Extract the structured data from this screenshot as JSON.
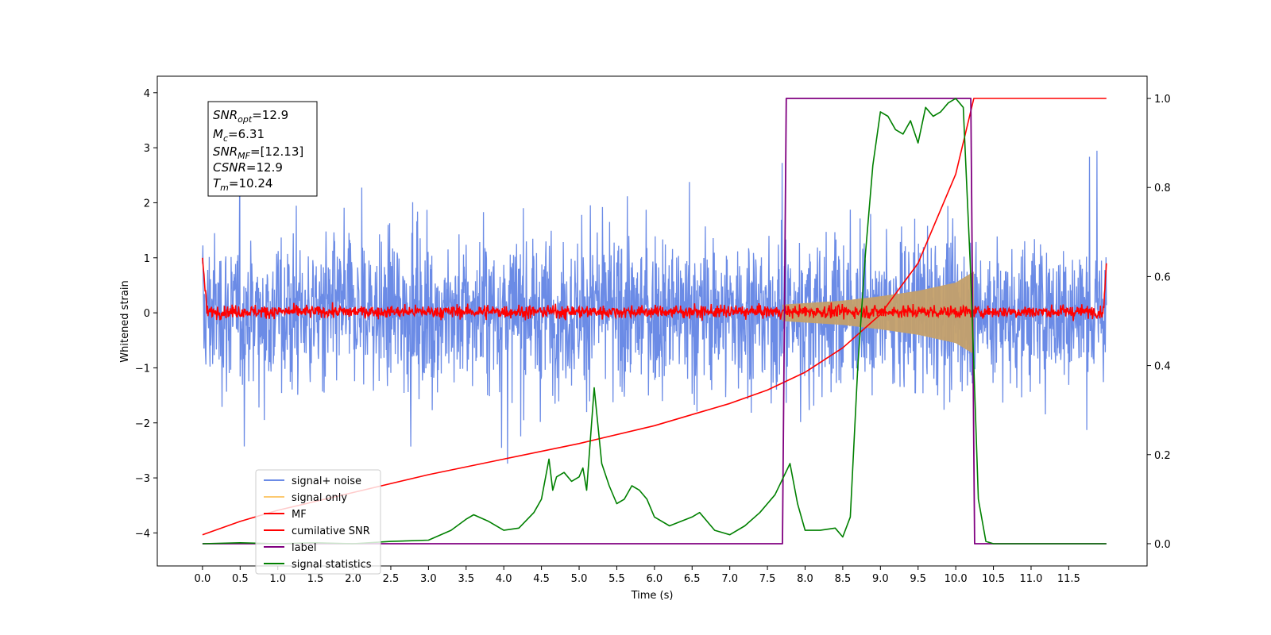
{
  "chart_data": {
    "type": "line",
    "title": "",
    "xlabel": "Time (s)",
    "ylabel": "Whitened strain",
    "xlim": [
      -0.6,
      12.54
    ],
    "ylim_left": [
      -4.6,
      4.3
    ],
    "ylim_right": [
      -0.05,
      1.05
    ],
    "xticks": [
      "0.0",
      "0.5",
      "1.0",
      "1.5",
      "2.0",
      "2.5",
      "3.0",
      "3.5",
      "4.0",
      "4.5",
      "5.0",
      "5.5",
      "6.0",
      "6.5",
      "7.0",
      "7.5",
      "8.0",
      "8.5",
      "9.0",
      "9.5",
      "10.0",
      "10.5",
      "11.0",
      "11.5"
    ],
    "yticks_left": [
      "4",
      "3",
      "2",
      "1",
      "0",
      "−1",
      "−2",
      "−3",
      "−4"
    ],
    "yticks_right": [
      "1.0",
      "0.8",
      "0.6",
      "0.4",
      "0.2",
      "0.0"
    ],
    "grid": false,
    "legend_position": "lower-left",
    "info_box": {
      "line1": "=12.9",
      "line1_sym": "SNR",
      "line1_sub": "opt",
      "line2": "=6.31",
      "line2_sym": "M",
      "line2_sub": "c",
      "line3": "=[12.13]",
      "line3_sym": "SNR",
      "line3_sub": "MF",
      "line4": "=12.9",
      "line4_sym": "CSNR",
      "line5": "=10.24",
      "line5_sym": "T",
      "line5_sub": "m"
    },
    "series": [
      {
        "name": "signal+ noise",
        "color": "#6b8be6",
        "axis": "left",
        "noise_envelope": 2.6,
        "t_range": [
          0,
          12.0
        ]
      },
      {
        "name": "signal only",
        "color": "#fcc970",
        "axis": "left",
        "envelope": [
          [
            7.7,
            0.15
          ],
          [
            8.5,
            0.22
          ],
          [
            9.0,
            0.3
          ],
          [
            9.5,
            0.4
          ],
          [
            10.0,
            0.55
          ],
          [
            10.24,
            0.75
          ]
        ]
      },
      {
        "name": "MF",
        "color": "#ff0000",
        "axis": "left",
        "baseline": 0.02,
        "noise": 0.09,
        "edges": [
          [
            0.0,
            1.0
          ],
          [
            12.0,
            0.9
          ]
        ]
      },
      {
        "name": "cumilative SNR",
        "color": "#ff0000",
        "axis": "right",
        "x": [
          0.0,
          0.5,
          1.0,
          2.0,
          3.0,
          4.0,
          5.0,
          6.0,
          7.0,
          7.5,
          8.0,
          8.5,
          9.0,
          9.5,
          10.0,
          10.24,
          12.0
        ],
        "y": [
          0.02,
          0.05,
          0.075,
          0.115,
          0.155,
          0.19,
          0.225,
          0.265,
          0.315,
          0.345,
          0.385,
          0.44,
          0.515,
          0.63,
          0.83,
          1.0,
          1.0
        ]
      },
      {
        "name": "label",
        "color": "#800080",
        "axis": "right",
        "x": [
          0.0,
          7.7,
          7.75,
          10.2,
          10.25,
          12.0
        ],
        "y": [
          0.0,
          0.0,
          1.0,
          1.0,
          0.0,
          0.0
        ]
      },
      {
        "name": "signal statistics",
        "color": "#008000",
        "axis": "right",
        "x": [
          0.0,
          0.5,
          1.0,
          1.5,
          2.0,
          2.5,
          3.0,
          3.3,
          3.5,
          3.6,
          3.8,
          4.0,
          4.2,
          4.4,
          4.5,
          4.6,
          4.65,
          4.7,
          4.8,
          4.9,
          5.0,
          5.05,
          5.1,
          5.2,
          5.3,
          5.4,
          5.5,
          5.6,
          5.7,
          5.8,
          5.9,
          6.0,
          6.2,
          6.5,
          6.6,
          6.8,
          6.9,
          7.0,
          7.2,
          7.4,
          7.6,
          7.8,
          7.9,
          8.0,
          8.2,
          8.4,
          8.5,
          8.6,
          8.7,
          8.8,
          8.9,
          9.0,
          9.1,
          9.2,
          9.3,
          9.4,
          9.5,
          9.6,
          9.7,
          9.8,
          9.9,
          10.0,
          10.1,
          10.2,
          10.3,
          10.4,
          10.5,
          11.0,
          12.0
        ],
        "y": [
          0.0,
          0.002,
          0.0,
          0.002,
          0.0,
          0.005,
          0.008,
          0.03,
          0.055,
          0.065,
          0.05,
          0.03,
          0.035,
          0.07,
          0.1,
          0.19,
          0.12,
          0.15,
          0.16,
          0.14,
          0.15,
          0.17,
          0.12,
          0.35,
          0.18,
          0.13,
          0.09,
          0.1,
          0.13,
          0.12,
          0.1,
          0.06,
          0.04,
          0.06,
          0.07,
          0.03,
          0.025,
          0.02,
          0.04,
          0.07,
          0.11,
          0.18,
          0.09,
          0.03,
          0.03,
          0.035,
          0.015,
          0.06,
          0.4,
          0.65,
          0.85,
          0.97,
          0.96,
          0.93,
          0.92,
          0.95,
          0.9,
          0.98,
          0.96,
          0.97,
          0.99,
          1.0,
          0.98,
          0.6,
          0.1,
          0.005,
          0.0,
          0.0,
          0.0
        ]
      }
    ]
  }
}
